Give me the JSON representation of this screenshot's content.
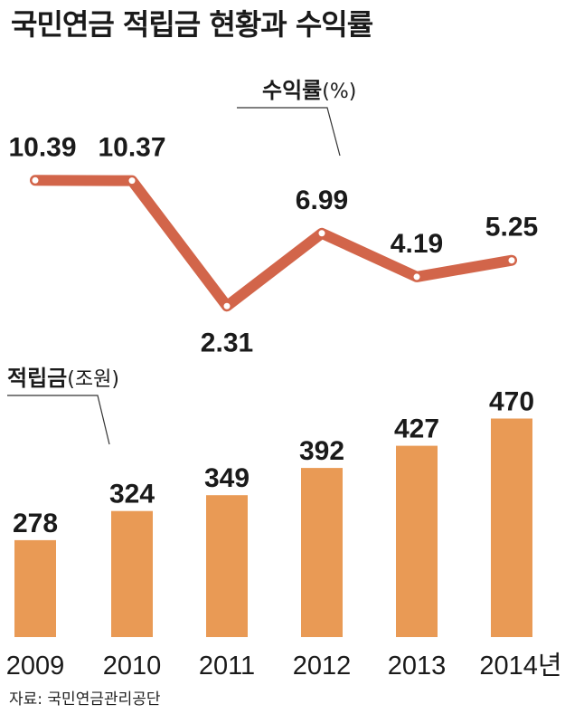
{
  "title": "국민연금 적립금 현황과 수익률",
  "source": "자료: 국민연금관리공단",
  "colors": {
    "line": "#d2654a",
    "bar": "#e99a55",
    "text": "#1a1a1a"
  },
  "chart_data": [
    {
      "type": "line",
      "series_name": "수익률",
      "unit": "(%)",
      "categories": [
        "2009",
        "2010",
        "2011",
        "2012",
        "2013",
        "2014"
      ],
      "values": [
        10.39,
        10.37,
        2.31,
        6.99,
        4.19,
        5.25
      ],
      "labels": [
        "10.39",
        "10.37",
        "2.31",
        "6.99",
        "4.19",
        "5.25"
      ]
    },
    {
      "type": "bar",
      "series_name": "적립금",
      "unit": "(조원)",
      "categories": [
        "2009",
        "2010",
        "2011",
        "2012",
        "2013",
        "2014년"
      ],
      "values": [
        278,
        324,
        349,
        392,
        427,
        470
      ],
      "labels": [
        "278",
        "324",
        "349",
        "392",
        "427",
        "470"
      ]
    }
  ]
}
